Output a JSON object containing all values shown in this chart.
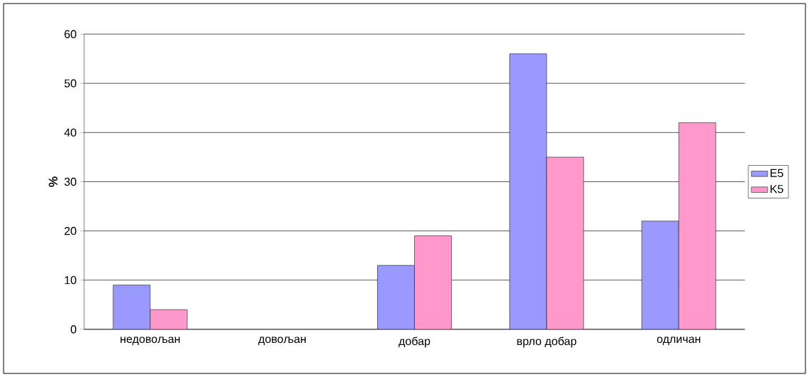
{
  "chart_data": {
    "type": "bar",
    "ylabel": "%",
    "categories": [
      "недовољан",
      "довољан",
      "добар",
      "врло добар",
      "одличан"
    ],
    "series": [
      {
        "name": "E5",
        "color": "#9999ff",
        "values": [
          9,
          null,
          13,
          56,
          22
        ]
      },
      {
        "name": "K5",
        "color": "#ff99cc",
        "values": [
          4,
          null,
          19,
          35,
          42
        ]
      }
    ],
    "ylim": [
      0,
      60
    ],
    "yticks": [
      0,
      10,
      20,
      30,
      40,
      50,
      60
    ],
    "grid": "y",
    "legend": "right"
  }
}
